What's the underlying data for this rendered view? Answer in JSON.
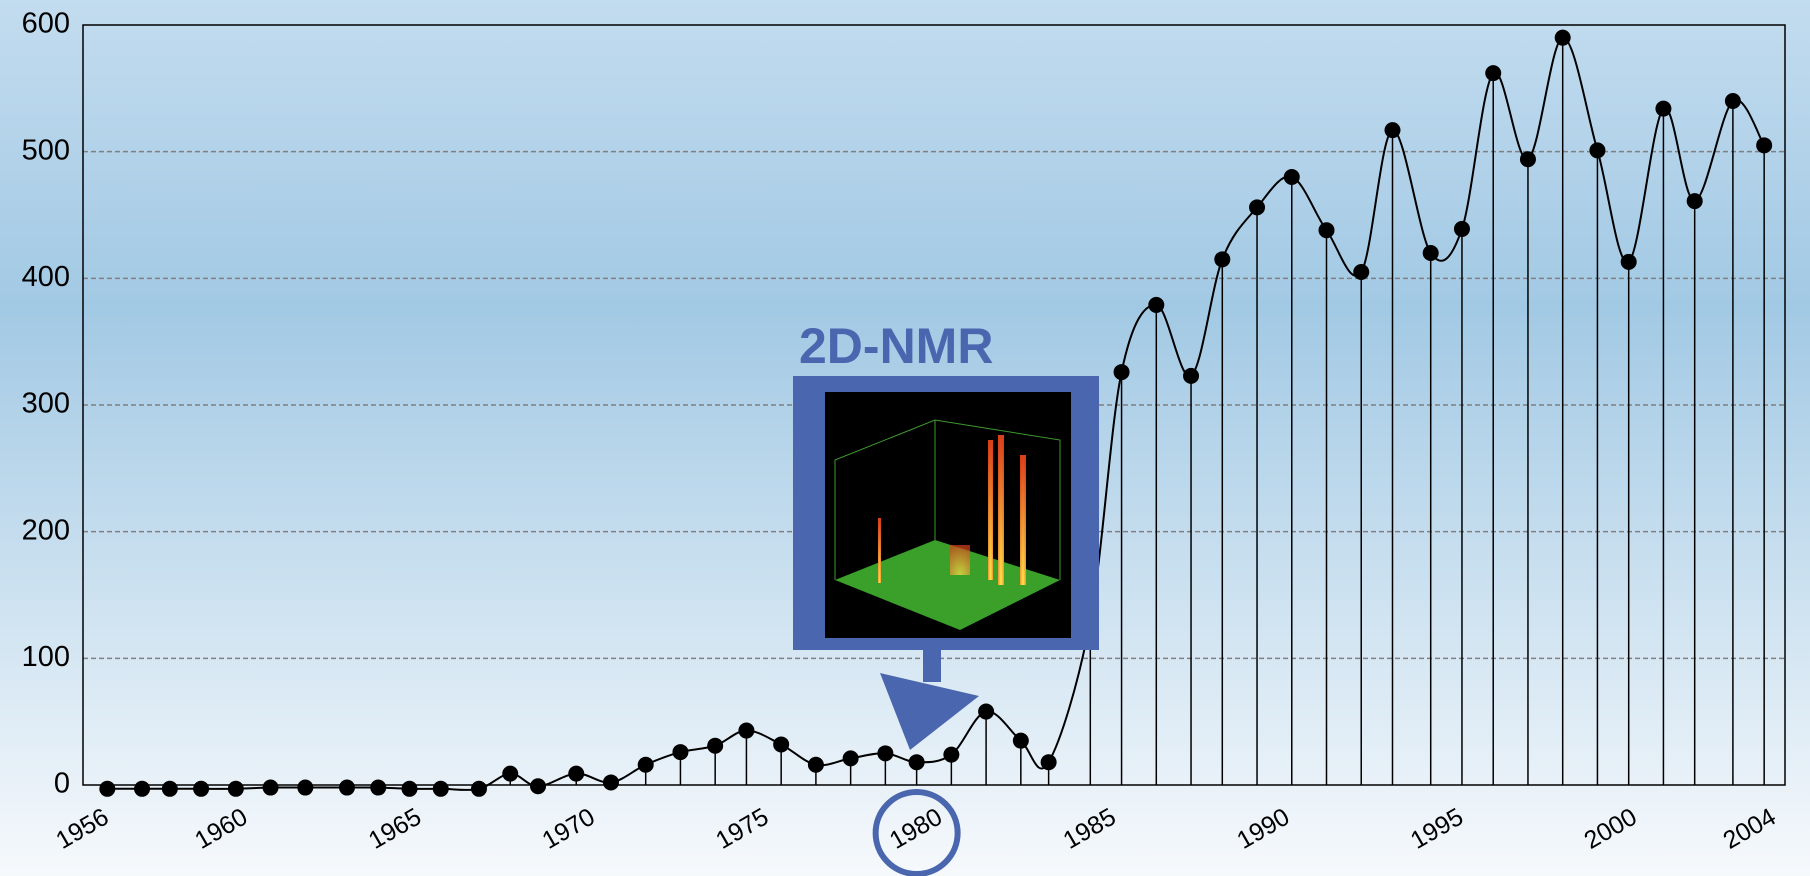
{
  "chart_data": {
    "type": "line",
    "annotation": "2D-NMR",
    "x": [
      1956.7,
      1957.7,
      1958.5,
      1959.4,
      1960.4,
      1961.4,
      1962.4,
      1963.6,
      1964.5,
      1965.4,
      1966.3,
      1967.4,
      1968.3,
      1969.1,
      1970.2,
      1971.2,
      1972.2,
      1973.2,
      1974.2,
      1975.1,
      1976.1,
      1977.1,
      1978.1,
      1979.1,
      1980,
      1981,
      1982,
      1983,
      1983.8,
      1985,
      1985.9,
      1986.9,
      1987.9,
      1988.8,
      1989.8,
      1990.8,
      1991.8,
      1992.8,
      1993.7,
      1994.8,
      1995.7,
      1996.6,
      1997.6,
      1998.6,
      1999.6,
      2000.5,
      2001.5,
      2002.4,
      2003.5,
      2004.4
    ],
    "series": [
      {
        "color": "#000000",
        "values": [
          -3,
          -3,
          -3,
          -3,
          -3,
          -2,
          -2,
          -2,
          -2,
          -3,
          -3,
          -3,
          9,
          -1,
          9,
          2,
          16,
          26,
          31,
          43,
          32,
          16,
          21,
          25,
          18,
          24,
          58,
          35,
          18,
          130,
          326,
          379,
          323,
          415,
          456,
          480,
          438,
          405,
          517,
          420,
          439,
          562,
          494,
          590,
          501,
          413,
          534,
          461,
          540,
          505
        ]
      }
    ],
    "xlim": [
      1956,
      2005
    ],
    "xticks": [
      1956,
      1960,
      1965,
      1970,
      1975,
      1980,
      1985,
      1990,
      1995,
      2000,
      2004
    ],
    "ylim": [
      0,
      600
    ],
    "yticks": [
      0,
      100,
      200,
      300,
      400,
      500,
      600
    ],
    "grid": true,
    "highlight_tick": 5
  }
}
